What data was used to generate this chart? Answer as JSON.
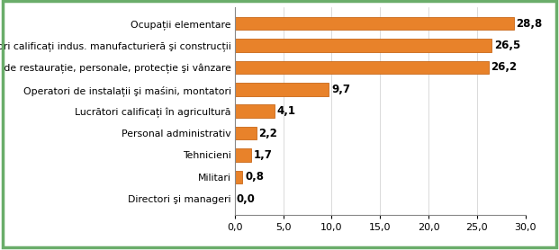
{
  "categories": [
    "Directori şi manageri",
    "Militari",
    "Tehnicieni",
    "Personal administrativ",
    "Lucrători calificați în agricultură",
    "Operatori de instalații şi maśini, montatori",
    "Lucr. serv. de restaurație, personale, protecție şi vânzare",
    "Lucrători calificați indus. manufacturieră şi construcții",
    "Ocupații elementare"
  ],
  "values": [
    0.0,
    0.8,
    1.7,
    2.2,
    4.1,
    9.7,
    26.2,
    26.5,
    28.8
  ],
  "bar_color": "#E8822A",
  "bar_edge_color": "#C86818",
  "value_labels": [
    "0,0",
    "0,8",
    "1,7",
    "2,2",
    "4,1",
    "9,7",
    "26,2",
    "26,5",
    "28,8"
  ],
  "xlim": [
    0,
    30
  ],
  "xticks": [
    0.0,
    5.0,
    10.0,
    15.0,
    20.0,
    25.0,
    30.0
  ],
  "xtick_labels": [
    "0,0",
    "5,0",
    "10,0",
    "15,0",
    "20,0",
    "25,0",
    "30,0"
  ],
  "background_color": "#ffffff",
  "border_color": "#6AAD6A",
  "label_fontsize": 7.8,
  "value_fontsize": 8.5,
  "tick_fontsize": 8.0
}
